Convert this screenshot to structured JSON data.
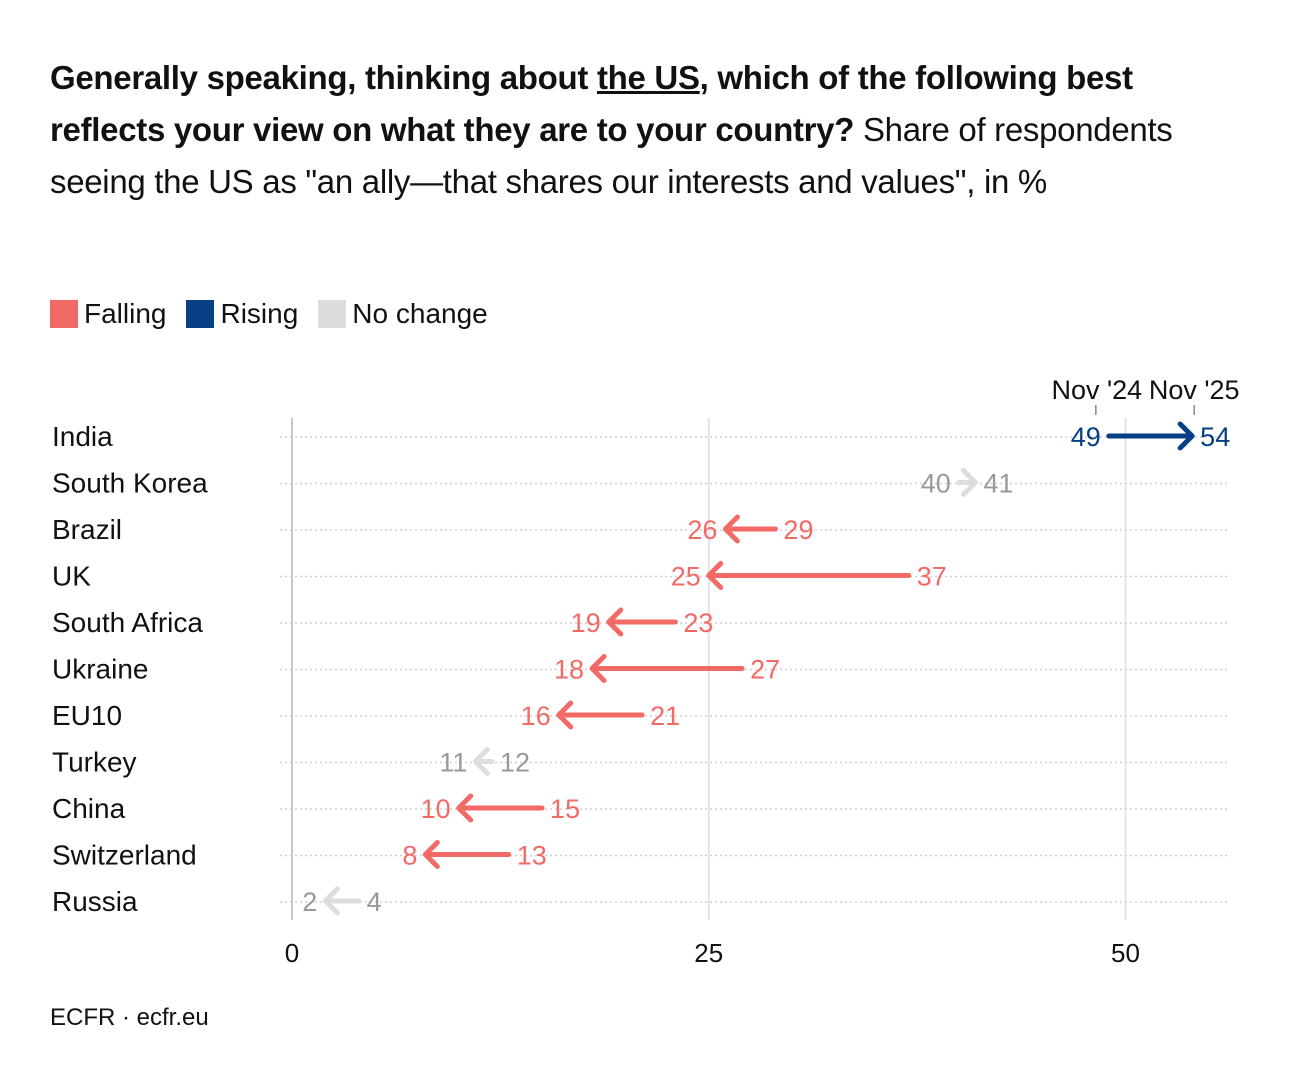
{
  "title": {
    "bold_before": "Generally speaking, thinking about ",
    "bold_underlined": "the US",
    "bold_after": ", which of the following best reflects your view on what they are to your country?",
    "regular": " Share of respondents seeing the US as \"an ally—that shares our interests and values\", in %"
  },
  "legend": [
    {
      "label": "Falling",
      "color": "#f26a66"
    },
    {
      "label": "Rising",
      "color": "#063f84"
    },
    {
      "label": "No change",
      "color": "#dddddd"
    }
  ],
  "footer": "ECFR · ecfr.eu",
  "chart_data": {
    "type": "arrow-dot",
    "xlim": [
      0,
      56
    ],
    "x_ticks": [
      "0",
      "25",
      "50"
    ],
    "x_tick_values": [
      0,
      25,
      50
    ],
    "period_labels": [
      "Nov '24",
      "Nov '25"
    ],
    "grid": true,
    "legend_position": "top-left",
    "colors": {
      "Falling": "#f26a66",
      "Rising": "#063f84",
      "No change": "#dddddd",
      "no_change_text": "#999999"
    },
    "rows": [
      {
        "country": "India",
        "nov24": 49,
        "nov25": 54,
        "trend": "Rising"
      },
      {
        "country": "South Korea",
        "nov24": 40,
        "nov25": 41,
        "trend": "No change"
      },
      {
        "country": "Brazil",
        "nov24": 29,
        "nov25": 26,
        "trend": "Falling"
      },
      {
        "country": "UK",
        "nov24": 37,
        "nov25": 25,
        "trend": "Falling"
      },
      {
        "country": "South Africa",
        "nov24": 23,
        "nov25": 19,
        "trend": "Falling"
      },
      {
        "country": "Ukraine",
        "nov24": 27,
        "nov25": 18,
        "trend": "Falling"
      },
      {
        "country": "EU10",
        "nov24": 21,
        "nov25": 16,
        "trend": "Falling"
      },
      {
        "country": "Turkey",
        "nov24": 12,
        "nov25": 11,
        "trend": "No change"
      },
      {
        "country": "China",
        "nov24": 15,
        "nov25": 10,
        "trend": "Falling"
      },
      {
        "country": "Switzerland",
        "nov24": 13,
        "nov25": 8,
        "trend": "Falling"
      },
      {
        "country": "Russia",
        "nov24": 4,
        "nov25": 2,
        "trend": "No change"
      }
    ]
  }
}
